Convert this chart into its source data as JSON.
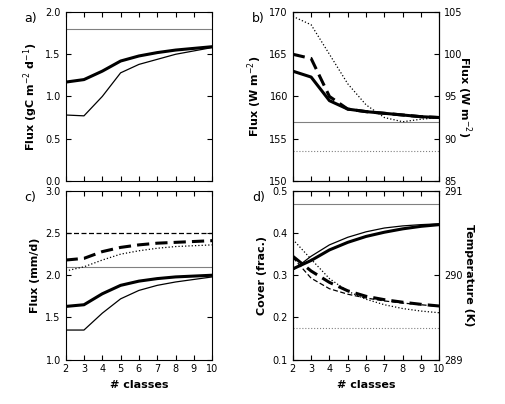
{
  "x": [
    2,
    3,
    4,
    5,
    6,
    7,
    8,
    9,
    10
  ],
  "panel_a": {
    "ylabel": "Flux (gC m$^{-2}$ d$^{-1}$)",
    "ylim": [
      0.0,
      2.0
    ],
    "yticks": [
      0.0,
      0.5,
      1.0,
      1.5,
      2.0
    ],
    "hline": 1.8,
    "line_thick": [
      1.17,
      1.2,
      1.3,
      1.42,
      1.48,
      1.52,
      1.55,
      1.57,
      1.59
    ],
    "line_thin": [
      0.78,
      0.77,
      1.0,
      1.28,
      1.38,
      1.44,
      1.5,
      1.54,
      1.58
    ]
  },
  "panel_b": {
    "ylabel_left": "Flux (W m$^{-2}$)",
    "ylabel_right": "Flux (W m$^{-2}$)",
    "ylim_left": [
      150,
      170
    ],
    "ylim_right": [
      85,
      105
    ],
    "yticks_left": [
      150,
      155,
      160,
      165,
      170
    ],
    "yticks_right": [
      85,
      90,
      95,
      100,
      105
    ],
    "hline_solid": 157.0,
    "hline_dotted": 153.5,
    "line_thick_solid": [
      163.0,
      162.3,
      159.5,
      158.5,
      158.2,
      158.0,
      157.8,
      157.6,
      157.5
    ],
    "line_thick_dashed": [
      165.0,
      164.5,
      160.0,
      158.5,
      158.2,
      158.0,
      157.8,
      157.6,
      157.5
    ],
    "line_thin_dotted": [
      169.5,
      168.5,
      165.0,
      161.5,
      159.0,
      157.5,
      157.0,
      157.3,
      157.5
    ]
  },
  "panel_c": {
    "ylabel": "Flux (mm/d)",
    "ylim": [
      1.0,
      3.0
    ],
    "yticks": [
      1.0,
      1.5,
      2.0,
      2.5,
      3.0
    ],
    "hline": 2.1,
    "line_thick_solid": [
      1.63,
      1.65,
      1.78,
      1.88,
      1.93,
      1.96,
      1.98,
      1.99,
      2.0
    ],
    "line_thin_solid": [
      1.35,
      1.35,
      1.55,
      1.72,
      1.82,
      1.88,
      1.92,
      1.95,
      1.98
    ],
    "line_thick_dashed": [
      2.18,
      2.2,
      2.28,
      2.33,
      2.36,
      2.38,
      2.39,
      2.4,
      2.41
    ],
    "line_thin_dashed": [
      2.5,
      2.5,
      2.5,
      2.5,
      2.5,
      2.5,
      2.5,
      2.5,
      2.5
    ],
    "line_dotted": [
      2.05,
      2.1,
      2.18,
      2.25,
      2.29,
      2.32,
      2.34,
      2.35,
      2.36
    ]
  },
  "panel_d": {
    "ylabel_left": "Cover (frac.)",
    "ylabel_right": "Temperature (K)",
    "ylim_left": [
      0.1,
      0.5
    ],
    "ylim_right": [
      289,
      291
    ],
    "yticks_left": [
      0.1,
      0.2,
      0.3,
      0.4,
      0.5
    ],
    "yticks_right": [
      289,
      290,
      291
    ],
    "hline_solid": 0.47,
    "hline_dotted": 0.175,
    "line_thick_solid": [
      0.315,
      0.335,
      0.36,
      0.378,
      0.392,
      0.402,
      0.41,
      0.416,
      0.42
    ],
    "line_thin_solid": [
      0.312,
      0.345,
      0.372,
      0.39,
      0.403,
      0.412,
      0.417,
      0.42,
      0.422
    ],
    "line_thick_dashed": [
      0.345,
      0.31,
      0.283,
      0.263,
      0.25,
      0.242,
      0.236,
      0.231,
      0.227
    ],
    "line_thin_dashed": [
      0.342,
      0.293,
      0.268,
      0.255,
      0.246,
      0.239,
      0.234,
      0.23,
      0.226
    ],
    "line_dotted": [
      0.385,
      0.338,
      0.292,
      0.262,
      0.243,
      0.23,
      0.221,
      0.215,
      0.211
    ]
  },
  "xlabel": "# classes",
  "xticks": [
    2,
    3,
    4,
    5,
    6,
    7,
    8,
    9,
    10
  ],
  "label_fontsize": 8,
  "tick_fontsize": 7,
  "panel_label_fontsize": 9
}
